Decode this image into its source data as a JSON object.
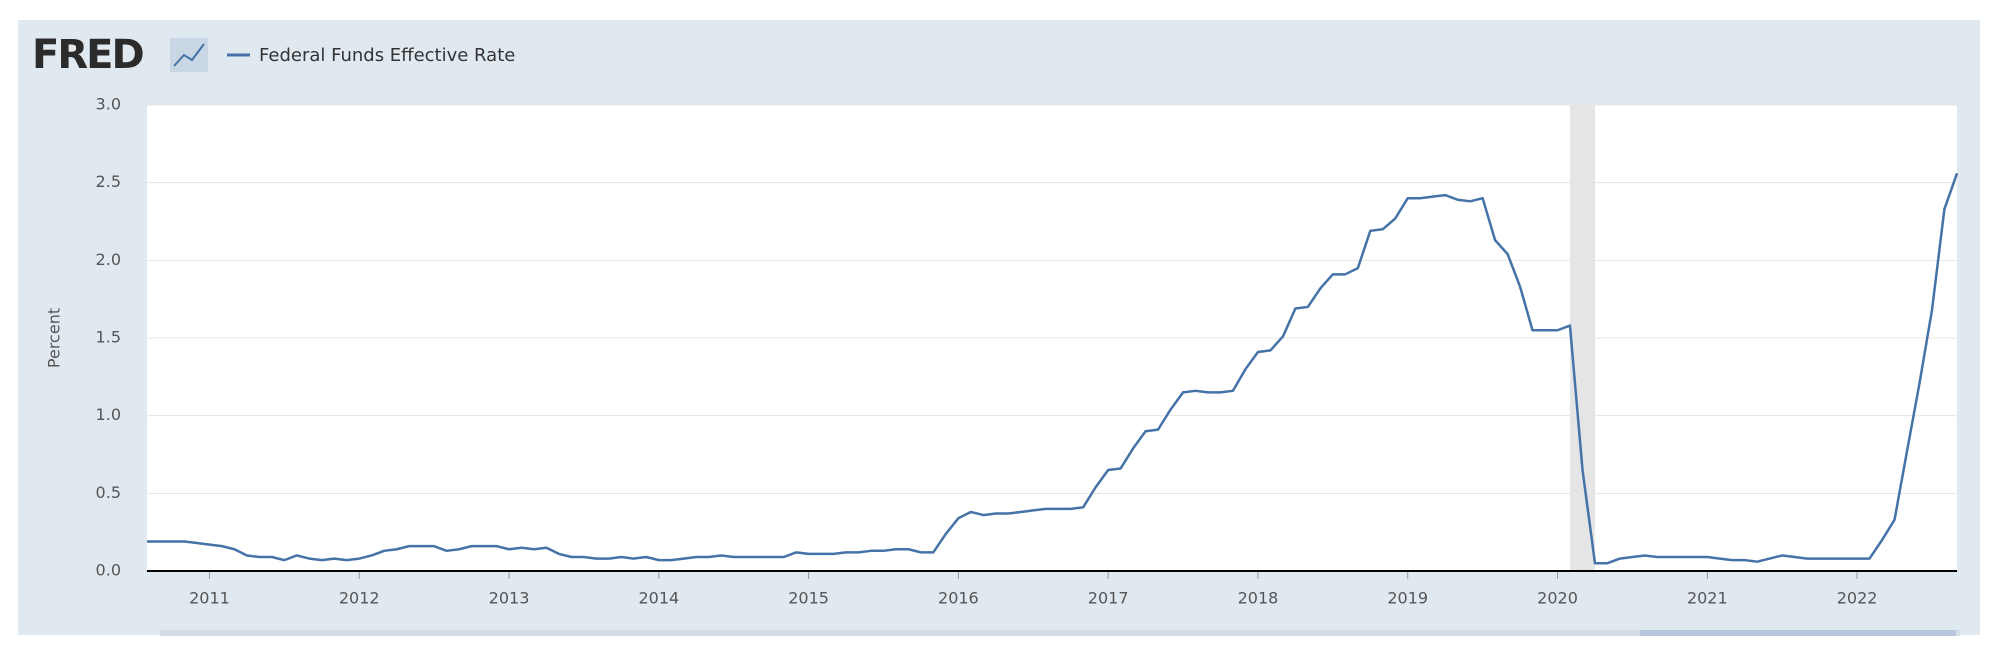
{
  "logo": "FRED",
  "chart_data": {
    "type": "line",
    "ylabel": "Percent",
    "series": [
      {
        "name": "Federal Funds Effective Rate",
        "color": "#4572a7",
        "x": [
          2010.583,
          2010.667,
          2010.75,
          2010.833,
          2010.917,
          2011,
          2011.083,
          2011.167,
          2011.25,
          2011.333,
          2011.417,
          2011.5,
          2011.583,
          2011.667,
          2011.75,
          2011.833,
          2011.917,
          2012,
          2012.083,
          2012.167,
          2012.25,
          2012.333,
          2012.417,
          2012.5,
          2012.583,
          2012.667,
          2012.75,
          2012.833,
          2012.917,
          2013,
          2013.083,
          2013.167,
          2013.25,
          2013.333,
          2013.417,
          2013.5,
          2013.583,
          2013.667,
          2013.75,
          2013.833,
          2013.917,
          2014,
          2014.083,
          2014.167,
          2014.25,
          2014.333,
          2014.417,
          2014.5,
          2014.583,
          2014.667,
          2014.75,
          2014.833,
          2014.917,
          2015,
          2015.083,
          2015.167,
          2015.25,
          2015.333,
          2015.417,
          2015.5,
          2015.583,
          2015.667,
          2015.75,
          2015.833,
          2015.917,
          2016,
          2016.083,
          2016.167,
          2016.25,
          2016.333,
          2016.417,
          2016.5,
          2016.583,
          2016.667,
          2016.75,
          2016.833,
          2016.917,
          2017,
          2017.083,
          2017.167,
          2017.25,
          2017.333,
          2017.417,
          2017.5,
          2017.583,
          2017.667,
          2017.75,
          2017.833,
          2017.917,
          2018,
          2018.083,
          2018.167,
          2018.25,
          2018.333,
          2018.417,
          2018.5,
          2018.583,
          2018.667,
          2018.75,
          2018.833,
          2018.917,
          2019,
          2019.083,
          2019.167,
          2019.25,
          2019.333,
          2019.417,
          2019.5,
          2019.583,
          2019.667,
          2019.75,
          2019.833,
          2019.917,
          2020,
          2020.083,
          2020.167,
          2020.25,
          2020.333,
          2020.417,
          2020.5,
          2020.583,
          2020.667,
          2020.75,
          2020.833,
          2020.917,
          2021,
          2021.083,
          2021.167,
          2021.25,
          2021.333,
          2021.417,
          2021.5,
          2021.583,
          2021.667,
          2021.75,
          2021.833,
          2021.917,
          2022,
          2022.083,
          2022.167,
          2022.25,
          2022.333,
          2022.417,
          2022.5,
          2022.583,
          2022.667
        ],
        "values": [
          0.19,
          0.19,
          0.19,
          0.19,
          0.18,
          0.17,
          0.16,
          0.14,
          0.1,
          0.09,
          0.09,
          0.07,
          0.1,
          0.08,
          0.07,
          0.08,
          0.07,
          0.08,
          0.1,
          0.13,
          0.14,
          0.16,
          0.16,
          0.16,
          0.13,
          0.14,
          0.16,
          0.16,
          0.16,
          0.14,
          0.15,
          0.14,
          0.15,
          0.11,
          0.09,
          0.09,
          0.08,
          0.08,
          0.09,
          0.08,
          0.09,
          0.07,
          0.07,
          0.08,
          0.09,
          0.09,
          0.1,
          0.09,
          0.09,
          0.09,
          0.09,
          0.09,
          0.12,
          0.11,
          0.11,
          0.11,
          0.12,
          0.12,
          0.13,
          0.13,
          0.14,
          0.14,
          0.12,
          0.12,
          0.24,
          0.34,
          0.38,
          0.36,
          0.37,
          0.37,
          0.38,
          0.39,
          0.4,
          0.4,
          0.4,
          0.41,
          0.54,
          0.65,
          0.66,
          0.79,
          0.9,
          0.91,
          1.04,
          1.15,
          1.16,
          1.15,
          1.15,
          1.16,
          1.3,
          1.41,
          1.42,
          1.51,
          1.69,
          1.7,
          1.82,
          1.91,
          1.91,
          1.95,
          2.19,
          2.2,
          2.27,
          2.4,
          2.4,
          2.41,
          2.42,
          2.39,
          2.38,
          2.4,
          2.13,
          2.04,
          1.83,
          1.55,
          1.55,
          1.55,
          1.58,
          0.65,
          0.05,
          0.05,
          0.08,
          0.09,
          0.1,
          0.09,
          0.09,
          0.09,
          0.09,
          0.09,
          0.08,
          0.07,
          0.07,
          0.06,
          0.08,
          0.1,
          0.09,
          0.08,
          0.08,
          0.08,
          0.08,
          0.08,
          0.08,
          0.2,
          0.33,
          0.77,
          1.21,
          1.68,
          2.33,
          2.56
        ]
      }
    ],
    "recession": [
      2020.083,
      2020.25
    ],
    "xlim": [
      2010.583,
      2022.667
    ],
    "xticks": [
      2011,
      2012,
      2013,
      2014,
      2015,
      2016,
      2017,
      2018,
      2019,
      2020,
      2021,
      2022
    ],
    "ylim": [
      0,
      3
    ],
    "yticks": [
      {
        "value": 0,
        "label": "0.0"
      },
      {
        "value": 0.5,
        "label": "0.5"
      },
      {
        "value": 1,
        "label": "1.0"
      },
      {
        "value": 1.5,
        "label": "1.5"
      },
      {
        "value": 2,
        "label": "2.0"
      },
      {
        "value": 2.5,
        "label": "2.5"
      },
      {
        "value": 3,
        "label": "3.0"
      }
    ],
    "grid": true
  }
}
